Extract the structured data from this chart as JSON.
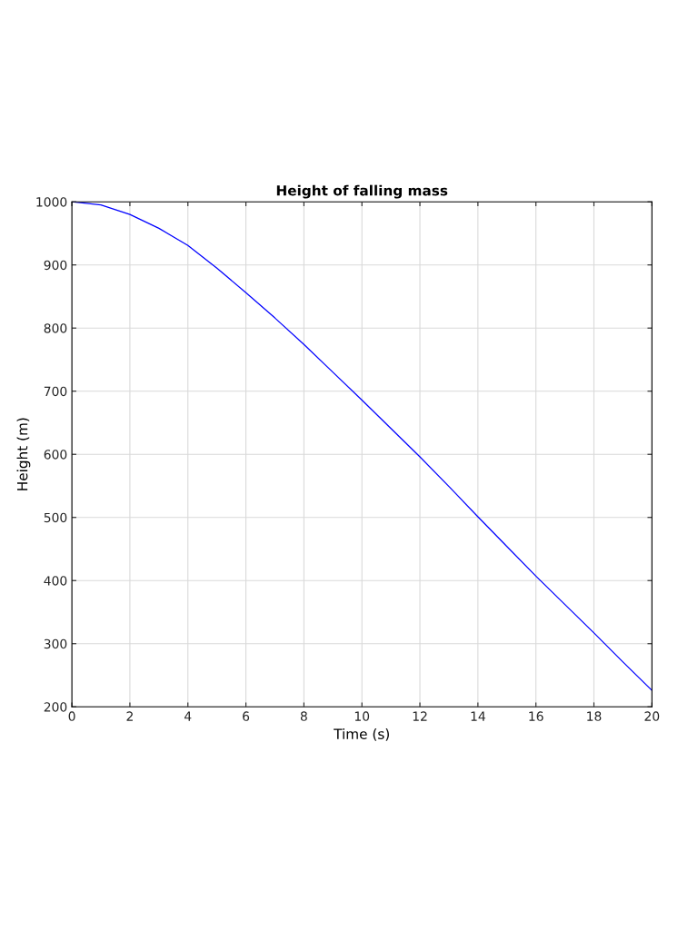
{
  "chart_data": {
    "type": "line",
    "title": "Height of falling mass",
    "xlabel": "Time (s)",
    "ylabel": "Height (m)",
    "x": [
      0,
      1,
      2,
      3,
      4,
      5,
      6,
      7,
      8,
      9,
      10,
      11,
      12,
      13,
      14,
      15,
      16,
      17,
      18,
      19,
      20
    ],
    "series": [
      {
        "color": "#0000ff",
        "values": [
          1000,
          995,
          980,
          958,
          931,
          895,
          856,
          816,
          774,
          730,
          686,
          641,
          596,
          549,
          501,
          454,
          407,
          362,
          317,
          271,
          226
        ]
      }
    ],
    "xlim": [
      0,
      20
    ],
    "xticks": [
      0,
      2,
      4,
      6,
      8,
      10,
      12,
      14,
      16,
      18,
      20
    ],
    "ylim": [
      200,
      1000
    ],
    "yticks": [
      200,
      300,
      400,
      500,
      600,
      700,
      800,
      900,
      1000
    ],
    "grid": true,
    "marker": "none",
    "line_style": "solid"
  }
}
